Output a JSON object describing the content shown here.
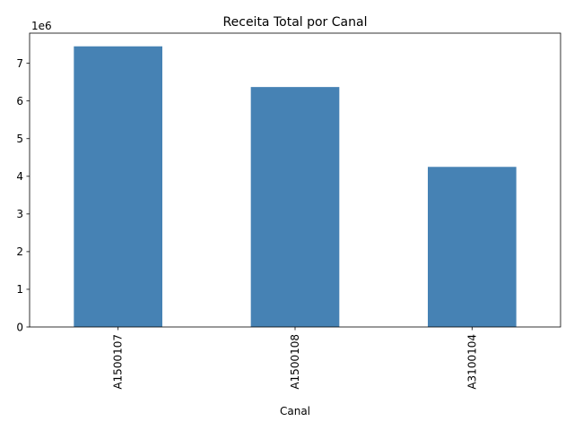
{
  "chart_data": {
    "type": "bar",
    "title": "Receita Total por Canal",
    "xlabel": "Canal",
    "ylabel": "",
    "categories": [
      "A1500107",
      "A1500108",
      "A3100104"
    ],
    "values": [
      7450000,
      6370000,
      4250000
    ],
    "ylim": [
      0,
      7800000
    ],
    "yticks": [
      0,
      1,
      2,
      3,
      4,
      5,
      6,
      7
    ],
    "ytick_labels": [
      "0",
      "1",
      "2",
      "3",
      "4",
      "5",
      "6",
      "7"
    ],
    "offset_label": "1e6",
    "bar_color": "#4682b4",
    "grid": false,
    "legend": "none"
  }
}
